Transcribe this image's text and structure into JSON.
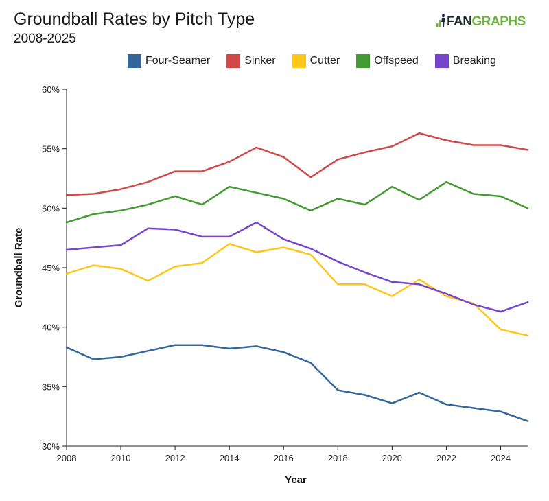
{
  "header": {
    "title": "Groundball Rates by Pitch Type",
    "subtitle": "2008-2025"
  },
  "logo": {
    "text_dark": "FAN",
    "text_green": "GRAPHS",
    "icon": "fangraphs-logo-icon",
    "dark_color": "#1f2a33",
    "green_color": "#6cb43f"
  },
  "chart_data": {
    "type": "line",
    "title": "Groundball Rates by Pitch Type",
    "subtitle": "2008-2025",
    "xlabel": "Year",
    "ylabel": "Groundball Rate",
    "xlim": [
      2008,
      2025
    ],
    "ylim": [
      30,
      60
    ],
    "x_ticks": [
      2008,
      2010,
      2012,
      2014,
      2016,
      2018,
      2020,
      2022,
      2024
    ],
    "y_ticks": [
      30,
      35,
      40,
      45,
      50,
      55,
      60
    ],
    "y_tick_labels": [
      "30%",
      "35%",
      "40%",
      "45%",
      "50%",
      "55%",
      "60%"
    ],
    "legend_position": "top",
    "grid": false,
    "x": [
      2008,
      2009,
      2010,
      2011,
      2012,
      2013,
      2014,
      2015,
      2016,
      2017,
      2018,
      2019,
      2020,
      2021,
      2022,
      2023,
      2024,
      2025
    ],
    "series": [
      {
        "name": "Four-Seamer",
        "color": "#336699",
        "values": [
          38.3,
          37.3,
          37.5,
          38.0,
          38.5,
          38.5,
          38.2,
          38.4,
          37.9,
          37.0,
          34.7,
          34.3,
          33.6,
          34.5,
          33.5,
          33.2,
          32.9,
          32.1
        ]
      },
      {
        "name": "Sinker",
        "color": "#d04848",
        "values": [
          51.1,
          51.2,
          51.6,
          52.2,
          53.1,
          53.1,
          53.9,
          55.1,
          54.3,
          52.6,
          54.1,
          54.7,
          55.2,
          56.3,
          55.7,
          55.3,
          55.3,
          54.9
        ]
      },
      {
        "name": "Cutter",
        "color": "#ffc61a",
        "values": [
          44.5,
          45.2,
          44.9,
          43.9,
          45.1,
          45.4,
          47.0,
          46.3,
          46.7,
          46.1,
          43.6,
          43.6,
          42.6,
          44.0,
          42.6,
          42.0,
          39.8,
          39.3
        ]
      },
      {
        "name": "Offspeed",
        "color": "#449933",
        "values": [
          48.8,
          49.5,
          49.8,
          50.3,
          51.0,
          50.3,
          51.8,
          51.3,
          50.8,
          49.8,
          50.8,
          50.3,
          51.8,
          50.7,
          52.2,
          51.2,
          51.0,
          50.0
        ]
      },
      {
        "name": "Breaking",
        "color": "#7744cc",
        "values": [
          46.5,
          46.7,
          46.9,
          48.3,
          48.2,
          47.6,
          47.6,
          48.8,
          47.4,
          46.6,
          45.5,
          44.6,
          43.8,
          43.6,
          42.8,
          41.9,
          41.3,
          42.1
        ]
      }
    ]
  }
}
